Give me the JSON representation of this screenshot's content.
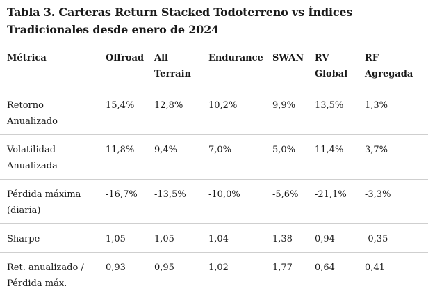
{
  "title": "Tabla 3. Carteras Return Stacked Todoterreno vs Índices Tradicionales desde enero de 2024",
  "headers": {
    "metric": "Métrica",
    "offroad": "Offroad",
    "all_terrain": "All Terrain",
    "endurance": "Endurance",
    "swan": "SWAN",
    "rv_global": "RV Global",
    "rf_agregada": "RF Agregada"
  },
  "rows": [
    {
      "metric": "Retorno Anualizado",
      "offroad": "15,4%",
      "all_terrain": "12,8%",
      "endurance": "10,2%",
      "swan": "9,9%",
      "rv_global": "13,5%",
      "rf_agregada": "1,3%"
    },
    {
      "metric": "Volatilidad Anualizada",
      "offroad": "11,8%",
      "all_terrain": "9,4%",
      "endurance": "7,0%",
      "swan": "5,0%",
      "rv_global": "11,4%",
      "rf_agregada": "3,7%"
    },
    {
      "metric": "Pérdida máxima (diaria)",
      "offroad": "-16,7%",
      "all_terrain": "-13,5%",
      "endurance": "-10,0%",
      "swan": "-5,6%",
      "rv_global": "-21,1%",
      "rf_agregada": "-3,3%"
    },
    {
      "metric": "Sharpe",
      "offroad": "1,05",
      "all_terrain": "1,05",
      "endurance": "1,04",
      "swan": "1,38",
      "rv_global": "0,94",
      "rf_agregada": "-0,35"
    },
    {
      "metric": "Ret. anualizado / Pérdida máx.",
      "offroad": "0,93",
      "all_terrain": "0,95",
      "endurance": "1,02",
      "swan": "1,77",
      "rv_global": "0,64",
      "rf_agregada": "0,41"
    }
  ],
  "colors": {
    "text": "#1a1a1a",
    "rule": "#cfcfcf",
    "background": "#ffffff"
  }
}
